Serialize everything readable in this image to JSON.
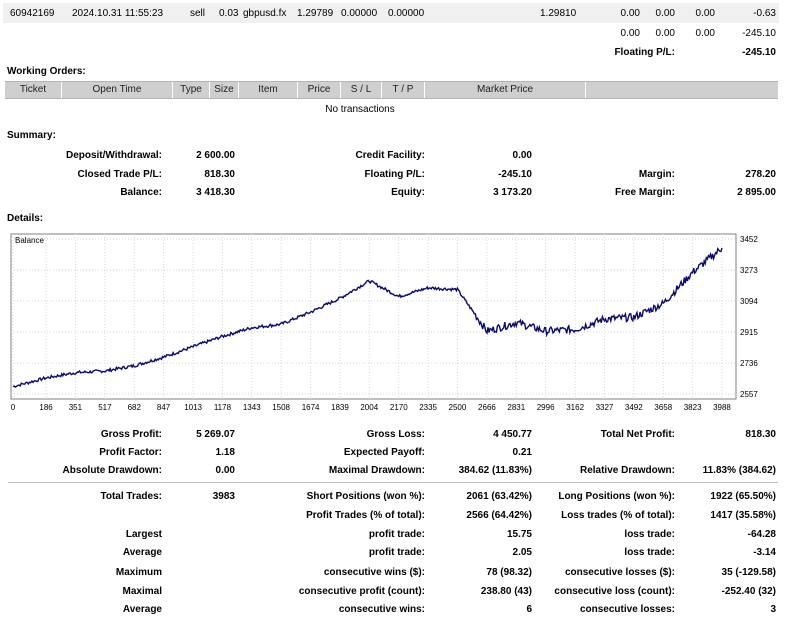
{
  "top_position": {
    "ticket": "60942169",
    "time": "2024.10.31 11:55:23",
    "type": "sell",
    "size": "0.03",
    "item": "gbpusd.fx",
    "price": "1.29789",
    "sl": "0.00000",
    "tp": "0.00000",
    "market_price": "1.29810",
    "commission": "0.00",
    "taxes": "0.00",
    "swap": "0.00",
    "profit": "-0.63"
  },
  "totals_row": [
    "0.00",
    "0.00",
    "0.00",
    "-245.10"
  ],
  "floating_row": {
    "label": "Floating P/L:",
    "value": "-245.10"
  },
  "working_orders": {
    "title": "Working Orders:",
    "columns": [
      "Ticket",
      "Open Time",
      "Type",
      "Size",
      "Item",
      "Price",
      "S / L",
      "T / P",
      "Market Price"
    ],
    "empty_text": "No transactions"
  },
  "summary": {
    "title": "Summary:",
    "deposit_label": "Deposit/Withdrawal:",
    "deposit_value": "2 600.00",
    "credit_label": "Credit Facility:",
    "credit_value": "0.00",
    "closed_label": "Closed Trade P/L:",
    "closed_value": "818.30",
    "floating_label": "Floating P/L:",
    "floating_value": "-245.10",
    "margin_label": "Margin:",
    "margin_value": "278.20",
    "balance_label": "Balance:",
    "balance_value": "3 418.30",
    "equity_label": "Equity:",
    "equity_value": "3 173.20",
    "free_margin_label": "Free Margin:",
    "free_margin_value": "2 895.00"
  },
  "details": {
    "title": "Details:",
    "chart_legend": "Balance"
  },
  "chart_data": {
    "type": "line",
    "title": "",
    "series": [
      {
        "name": "Balance",
        "color": "#0a0a6e"
      }
    ],
    "x": [
      0,
      186,
      351,
      517,
      682,
      847,
      1013,
      1178,
      1343,
      1508,
      1674,
      1839,
      2004,
      2170,
      2335,
      2500,
      2666,
      2831,
      2996,
      3162,
      3327,
      3492,
      3658,
      3823,
      3988
    ],
    "values": [
      2600,
      2650,
      2680,
      2690,
      2720,
      2770,
      2830,
      2890,
      2940,
      2960,
      3030,
      3110,
      3210,
      3120,
      3170,
      3160,
      2920,
      2970,
      2920,
      2930,
      2990,
      3000,
      3080,
      3260,
      3400
    ],
    "x_ticks": [
      "0",
      "186",
      "351",
      "517",
      "682",
      "847",
      "1013",
      "1178",
      "1343",
      "1508",
      "1674",
      "1839",
      "2004",
      "2170",
      "2335",
      "2500",
      "2666",
      "2831",
      "2996",
      "3162",
      "3327",
      "3492",
      "3658",
      "3823",
      "3988"
    ],
    "y_ticks": [
      "3452",
      "3273",
      "3094",
      "2915",
      "2736",
      "2557"
    ],
    "ylim": [
      2557,
      3452
    ],
    "xlim": [
      0,
      4050
    ],
    "grid": true
  },
  "stats": {
    "gross_profit_label": "Gross Profit:",
    "gross_profit": "5 269.07",
    "gross_loss_label": "Gross Loss:",
    "gross_loss": "4 450.77",
    "net_profit_label": "Total Net Profit:",
    "net_profit": "818.30",
    "profit_factor_label": "Profit Factor:",
    "profit_factor": "1.18",
    "expected_payoff_label": "Expected Payoff:",
    "expected_payoff": "0.21",
    "abs_dd_label": "Absolute Drawdown:",
    "abs_dd": "0.00",
    "max_dd_label": "Maximal Drawdown:",
    "max_dd": "384.62 (11.83%)",
    "rel_dd_label": "Relative Drawdown:",
    "rel_dd": "11.83% (384.62)",
    "total_trades_label": "Total Trades:",
    "total_trades": "3983",
    "short_label": "Short Positions (won %):",
    "short": "2061 (63.42%)",
    "long_label": "Long Positions (won %):",
    "long": "1922 (65.50%)",
    "profit_trades_label": "Profit Trades (% of total):",
    "profit_trades": "2566 (64.42%)",
    "loss_trades_label": "Loss trades (% of total):",
    "loss_trades": "1417 (35.58%)",
    "largest_label": "Largest",
    "largest_profit_label": "profit trade:",
    "largest_profit": "15.75",
    "largest_loss_label": "loss trade:",
    "largest_loss": "-64.28",
    "average_label": "Average",
    "avg_profit_label": "profit trade:",
    "avg_profit": "2.05",
    "avg_loss_label": "loss trade:",
    "avg_loss": "-3.14",
    "maximum_label": "Maximum",
    "max_wins_label": "consecutive wins ($):",
    "max_wins": "78 (98.32)",
    "max_losses_label": "consecutive losses ($):",
    "max_losses": "35 (-129.58)",
    "maximal_label": "Maximal",
    "maximal_profit_label": "consecutive profit (count):",
    "maximal_profit": "238.80 (43)",
    "maximal_loss_label": "consecutive loss (count):",
    "maximal_loss": "-252.40 (32)",
    "average2_label": "Average",
    "avg_wins_label": "consecutive wins:",
    "avg_wins": "6",
    "avg_losses_label": "consecutive losses:",
    "avg_losses": "3"
  }
}
